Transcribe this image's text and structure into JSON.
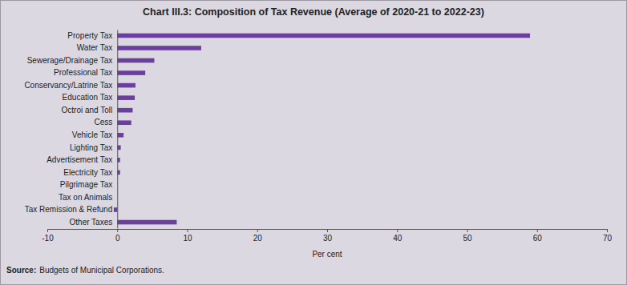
{
  "chart_data": {
    "type": "bar",
    "orientation": "horizontal",
    "title": "Chart III.3: Composition of Tax Revenue (Average of 2020-21 to 2022-23)",
    "categories": [
      "Property Tax",
      "Water Tax",
      "Sewerage/Drainage Tax",
      "Professional Tax",
      "Conservancy/Latrine Tax",
      "Education Tax",
      "Octroi and Toll",
      "Cess",
      "Vehicle Tax",
      "Lighting Tax",
      "Advertisement Tax",
      "Electricity Tax",
      "Pilgrimage Tax",
      "Tax on Animals",
      "Tax Remission & Refund",
      "Other Taxes"
    ],
    "values": [
      59.0,
      12.0,
      5.3,
      4.0,
      2.6,
      2.5,
      2.2,
      2.0,
      0.9,
      0.5,
      0.4,
      0.4,
      0.0,
      0.0,
      -0.5,
      8.5
    ],
    "color": "#6b3f9e",
    "xlim": [
      -10,
      70
    ],
    "xticks": [
      -10,
      0,
      10,
      20,
      30,
      40,
      50,
      60,
      70
    ],
    "x_label": "Per cent",
    "source_label": "Source:",
    "source": "Budgets of Municipal Corporations."
  }
}
